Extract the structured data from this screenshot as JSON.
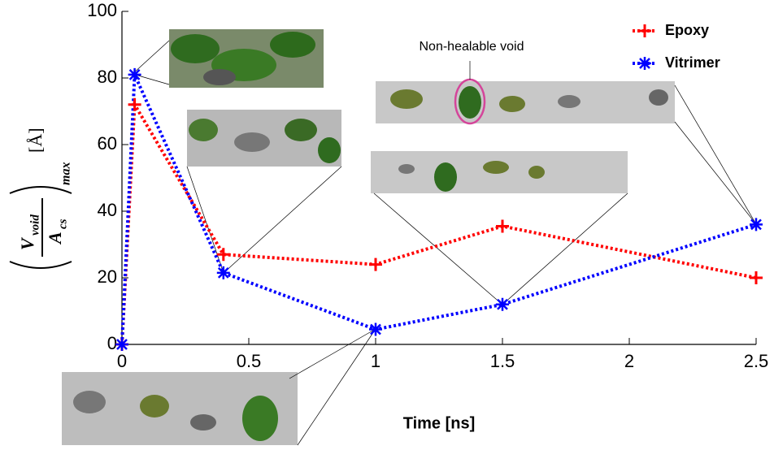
{
  "chart_data": {
    "type": "line",
    "x_label": "Time [ns]",
    "y_label": {
      "numerator": "V",
      "numerator_sub": "void",
      "denominator": "A",
      "denominator_sub": "cs",
      "subscript": "max",
      "unit": "[Å]"
    },
    "annotation": "Non-healable void",
    "x": [
      0,
      0.05,
      0.4,
      1,
      1.5,
      2.5
    ],
    "series": [
      {
        "name": "Epoxy",
        "color": "#ff0000",
        "marker": "plus",
        "values": [
          0,
          72,
          27,
          24,
          35.5,
          20
        ]
      },
      {
        "name": "Vitrimer",
        "color": "#0000ff",
        "marker": "asterisk",
        "values": [
          0,
          81,
          21.5,
          4.5,
          12,
          36
        ]
      }
    ],
    "xlim": [
      0,
      2.5
    ],
    "xticks": [
      0,
      0.5,
      1,
      1.5,
      2,
      2.5
    ],
    "ylim": [
      0,
      100
    ],
    "yticks": [
      0,
      20,
      40,
      60,
      80,
      100
    ],
    "legend": "top-right"
  }
}
